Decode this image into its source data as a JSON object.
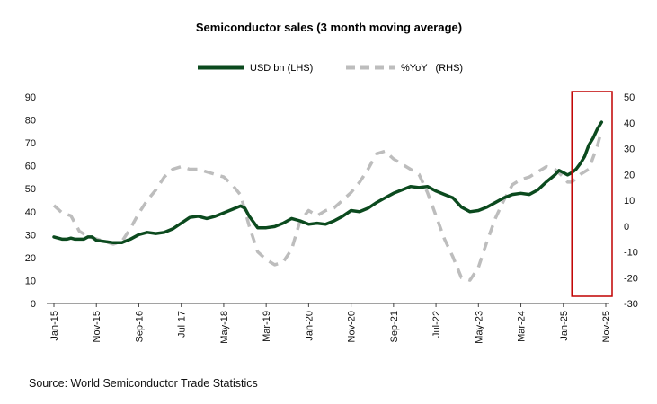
{
  "chart_data": {
    "type": "line",
    "title": "Semiconductor sales (3 month moving average)",
    "legend_position": "top-center",
    "grid": false,
    "x_tick_labels": [
      "Jan-15",
      "Nov-15",
      "Sep-16",
      "Jul-17",
      "May-18",
      "Mar-19",
      "Jan-20",
      "Nov-20",
      "Sep-21",
      "Jul-22",
      "May-23",
      "Mar-24",
      "Jan-25",
      "Nov-25"
    ],
    "x_range": [
      0,
      130
    ],
    "ylim_left": [
      0,
      90
    ],
    "left_ticks": [
      0,
      10,
      20,
      30,
      40,
      50,
      60,
      70,
      80,
      90
    ],
    "ylim_right": [
      -30,
      50
    ],
    "right_ticks": [
      -30,
      -20,
      -10,
      0,
      10,
      20,
      30,
      40,
      50
    ],
    "series": [
      {
        "name": "USD bn (LHS)",
        "axis": "left",
        "color": "#0b4a1e",
        "style": "solid",
        "points": [
          [
            0,
            29
          ],
          [
            1,
            28.5
          ],
          [
            2,
            28
          ],
          [
            3,
            28
          ],
          [
            4,
            28.5
          ],
          [
            5,
            28
          ],
          [
            6,
            28
          ],
          [
            7,
            28
          ],
          [
            8,
            29
          ],
          [
            9,
            29
          ],
          [
            10,
            27.5
          ],
          [
            12,
            27
          ],
          [
            14,
            26.5
          ],
          [
            16,
            26.5
          ],
          [
            18,
            28
          ],
          [
            20,
            30
          ],
          [
            22,
            31
          ],
          [
            24,
            30.5
          ],
          [
            26,
            31
          ],
          [
            28,
            32.5
          ],
          [
            30,
            35
          ],
          [
            32,
            37.5
          ],
          [
            34,
            38
          ],
          [
            36,
            37
          ],
          [
            38,
            38
          ],
          [
            40,
            39.5
          ],
          [
            42,
            41
          ],
          [
            44,
            42.5
          ],
          [
            45,
            41.5
          ],
          [
            46,
            38
          ],
          [
            48,
            33
          ],
          [
            50,
            33
          ],
          [
            52,
            33.5
          ],
          [
            54,
            35
          ],
          [
            56,
            37
          ],
          [
            58,
            36
          ],
          [
            60,
            34.5
          ],
          [
            62,
            35
          ],
          [
            64,
            34.5
          ],
          [
            66,
            36
          ],
          [
            68,
            38
          ],
          [
            70,
            40.5
          ],
          [
            72,
            40
          ],
          [
            74,
            41.5
          ],
          [
            76,
            44
          ],
          [
            78,
            46
          ],
          [
            80,
            48
          ],
          [
            82,
            49.5
          ],
          [
            84,
            51
          ],
          [
            86,
            50.5
          ],
          [
            88,
            51
          ],
          [
            90,
            49
          ],
          [
            92,
            47.5
          ],
          [
            94,
            46
          ],
          [
            96,
            42
          ],
          [
            98,
            40
          ],
          [
            100,
            40.5
          ],
          [
            102,
            42
          ],
          [
            104,
            44
          ],
          [
            106,
            46
          ],
          [
            108,
            47.5
          ],
          [
            110,
            48
          ],
          [
            112,
            47.5
          ],
          [
            114,
            49.5
          ],
          [
            116,
            53
          ],
          [
            118,
            56
          ],
          [
            119,
            58
          ],
          [
            120,
            57
          ],
          [
            121,
            56
          ],
          [
            122,
            57
          ],
          [
            123,
            58.5
          ],
          [
            124,
            61
          ],
          [
            125,
            64
          ],
          [
            126,
            69
          ],
          [
            127,
            72
          ],
          [
            128,
            76
          ],
          [
            129,
            79
          ]
        ]
      },
      {
        "name": "%YoY   (RHS)",
        "axis": "right",
        "color": "#bdbdbd",
        "style": "dashed",
        "points": [
          [
            0,
            8
          ],
          [
            2,
            5
          ],
          [
            4,
            4
          ],
          [
            6,
            -2
          ],
          [
            8,
            -4
          ],
          [
            10,
            -5
          ],
          [
            12,
            -6
          ],
          [
            14,
            -7
          ],
          [
            16,
            -6
          ],
          [
            18,
            -1
          ],
          [
            20,
            5
          ],
          [
            22,
            10
          ],
          [
            24,
            14
          ],
          [
            26,
            19
          ],
          [
            28,
            22
          ],
          [
            30,
            23
          ],
          [
            32,
            22
          ],
          [
            34,
            22
          ],
          [
            36,
            21
          ],
          [
            38,
            20
          ],
          [
            40,
            19
          ],
          [
            42,
            16
          ],
          [
            44,
            12
          ],
          [
            45,
            6
          ],
          [
            46,
            0
          ],
          [
            48,
            -10
          ],
          [
            50,
            -13
          ],
          [
            52,
            -15
          ],
          [
            54,
            -14
          ],
          [
            56,
            -9
          ],
          [
            58,
            2
          ],
          [
            60,
            6
          ],
          [
            62,
            4
          ],
          [
            64,
            6
          ],
          [
            66,
            7
          ],
          [
            68,
            10
          ],
          [
            70,
            13
          ],
          [
            72,
            17
          ],
          [
            74,
            22
          ],
          [
            76,
            28
          ],
          [
            78,
            29
          ],
          [
            80,
            26
          ],
          [
            82,
            24
          ],
          [
            84,
            22
          ],
          [
            86,
            20
          ],
          [
            88,
            13
          ],
          [
            90,
            4
          ],
          [
            92,
            -5
          ],
          [
            94,
            -12
          ],
          [
            96,
            -20
          ],
          [
            98,
            -21
          ],
          [
            100,
            -16
          ],
          [
            102,
            -6
          ],
          [
            104,
            3
          ],
          [
            106,
            10
          ],
          [
            108,
            16
          ],
          [
            110,
            18
          ],
          [
            112,
            19
          ],
          [
            114,
            21
          ],
          [
            116,
            23
          ],
          [
            118,
            22
          ],
          [
            120,
            19
          ],
          [
            121,
            17
          ],
          [
            122,
            17
          ],
          [
            124,
            20
          ],
          [
            126,
            22
          ],
          [
            128,
            31
          ],
          [
            129,
            37
          ]
        ]
      }
    ],
    "annotations": [
      {
        "type": "highlight-box",
        "from_x": 122,
        "to_x": 130,
        "color": "#c00000"
      }
    ]
  },
  "source_text": "Source: World Semiconductor Trade Statistics"
}
